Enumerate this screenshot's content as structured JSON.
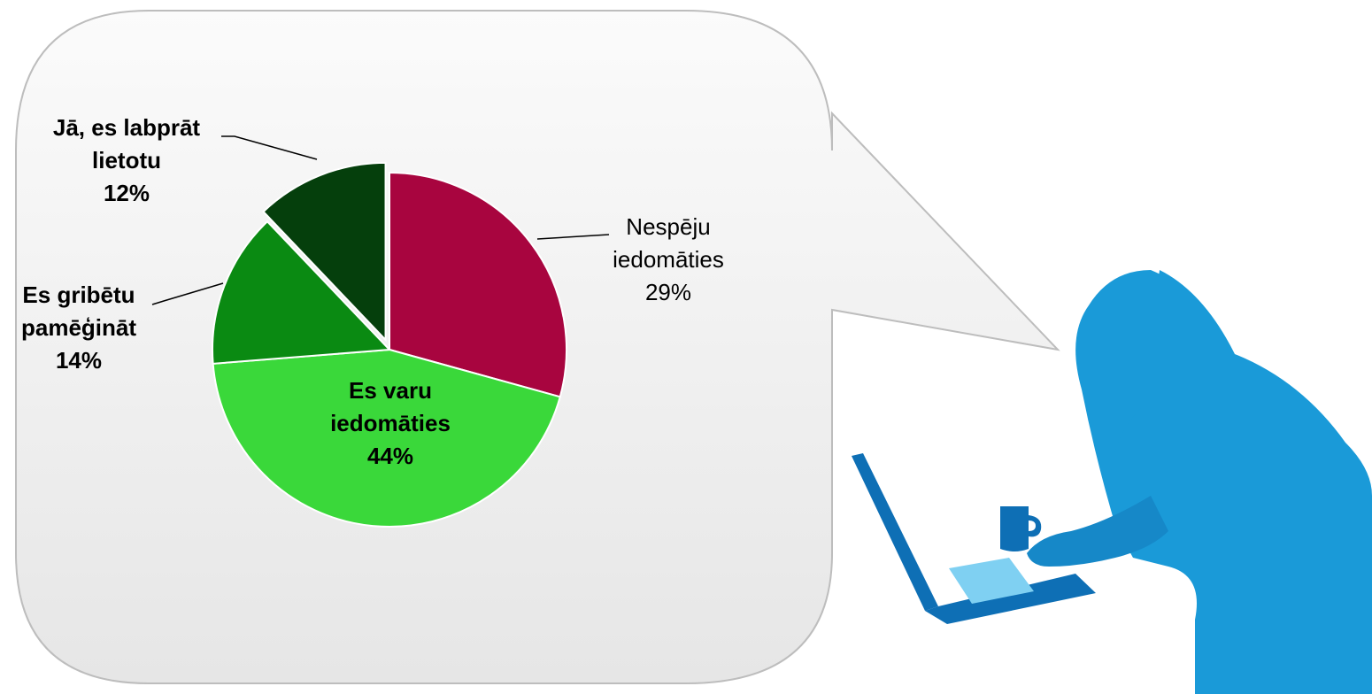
{
  "chart_data": {
    "type": "pie",
    "slices": [
      {
        "label_lines": [
          "Nespēju",
          "iedomāties"
        ],
        "value": 29,
        "value_label": "29%",
        "color": "#a8053f",
        "exploded": false,
        "bold": false
      },
      {
        "label_lines": [
          "Es varu",
          "iedomāties"
        ],
        "value": 44,
        "value_label": "44%",
        "color": "#3ad83a",
        "exploded": false,
        "bold": true
      },
      {
        "label_lines": [
          "Es gribētu",
          "pamēģināt"
        ],
        "value": 14,
        "value_label": "14%",
        "color": "#0a8a12",
        "exploded": false,
        "bold": true
      },
      {
        "label_lines": [
          "Jā, es labprāt",
          "lietotu"
        ],
        "value": 12,
        "value_label": "12%",
        "color": "#053f0c",
        "exploded": true,
        "bold": true
      }
    ],
    "legend": "none",
    "label_style": "category and percent next to slices"
  },
  "illustration": {
    "icon": "woman-with-laptop-silhouette-icon",
    "color": "#1a9ad8",
    "accent": "#0e6fb5",
    "screen_color": "#7fd0f2"
  },
  "bubble": {
    "fill": "#eeeeee",
    "stroke": "#bdbdbd"
  }
}
